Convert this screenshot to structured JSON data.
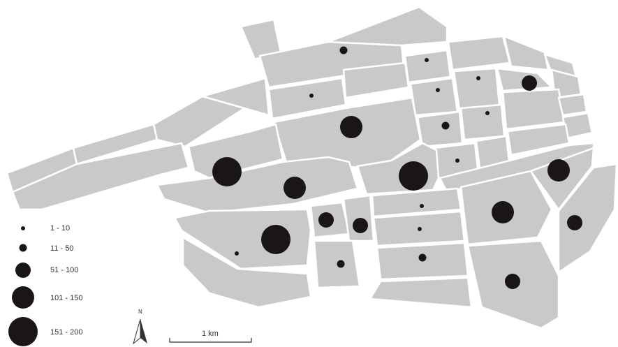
{
  "legend": {
    "classes": [
      {
        "label": "1 - 10"
      },
      {
        "label": "11 - 50"
      },
      {
        "label": "51 - 100"
      },
      {
        "label": "101 - 150"
      },
      {
        "label": "151 - 200"
      }
    ]
  },
  "north_arrow": {
    "label": "N"
  },
  "scale_bar": {
    "label": "1 km"
  },
  "colors": {
    "land": "#c9c9c9",
    "road": "#ffffff",
    "symbol": "#1a1616"
  },
  "symbols": [
    {
      "block": "north-strip",
      "class": 1
    },
    {
      "block": "upper-left-middle",
      "class": 0
    },
    {
      "block": "upper-center",
      "class": 3
    },
    {
      "block": "grid-col1-row1",
      "class": 0
    },
    {
      "block": "grid-col1-row2",
      "class": 0
    },
    {
      "block": "grid-col1-row3",
      "class": 1
    },
    {
      "block": "grid-col1-row4",
      "class": 0
    },
    {
      "block": "grid-col2-row2",
      "class": 0
    },
    {
      "block": "grid-col2-row3",
      "class": 0
    },
    {
      "block": "east-corner",
      "class": 2
    },
    {
      "block": "west-large",
      "class": 4
    },
    {
      "block": "center-west",
      "class": 3
    },
    {
      "block": "center",
      "class": 4
    },
    {
      "block": "east-upper",
      "class": 3
    },
    {
      "block": "south-mid-1",
      "class": 2
    },
    {
      "block": "south-mid-2",
      "class": 2
    },
    {
      "block": "south-center-1",
      "class": 0
    },
    {
      "block": "south-center-2",
      "class": 0
    },
    {
      "block": "south-east",
      "class": 3
    },
    {
      "block": "far-east",
      "class": 2
    },
    {
      "block": "south-west-large",
      "class": 4
    },
    {
      "block": "south-west-edge",
      "class": 0
    },
    {
      "block": "south-small",
      "class": 1
    },
    {
      "block": "south-center-3",
      "class": 1
    },
    {
      "block": "south-east-low",
      "class": 2
    }
  ]
}
